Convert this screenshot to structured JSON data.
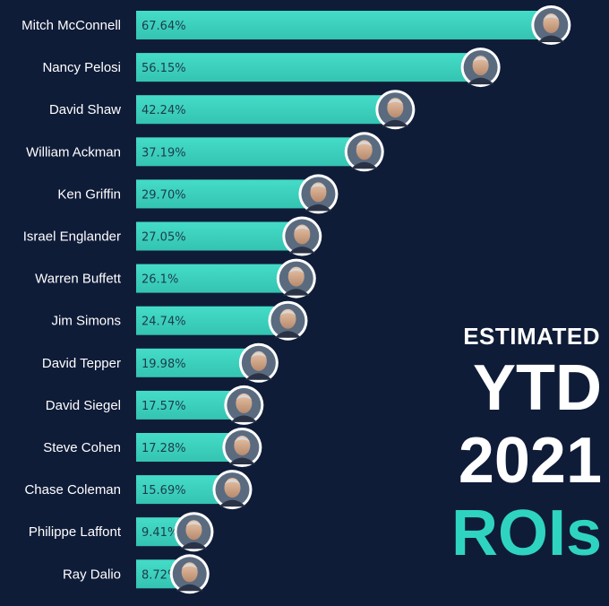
{
  "chart_data": {
    "type": "bar",
    "orientation": "horizontal",
    "categories": [
      "Mitch McConnell",
      "Nancy Pelosi",
      "David Shaw",
      "William Ackman",
      "Ken Griffin",
      "Israel Englander",
      "Warren Buffett",
      "Jim Simons",
      "David Tepper",
      "David Siegel",
      "Steve Cohen",
      "Chase Coleman",
      "Philippe Laffont",
      "Ray Dalio"
    ],
    "values": [
      67.64,
      56.15,
      42.24,
      37.19,
      29.7,
      27.05,
      26.1,
      24.74,
      19.98,
      17.57,
      17.28,
      15.69,
      9.41,
      8.72
    ],
    "value_labels": [
      "67.64%",
      "56.15%",
      "42.24%",
      "37.19%",
      "29.70%",
      "27.05%",
      "26.1%",
      "24.74%",
      "19.98%",
      "17.57%",
      "17.28%",
      "15.69%",
      "9.41%",
      "8.72%"
    ],
    "grid": false
  },
  "title": {
    "line1": "ESTIMATED",
    "line2": "YTD",
    "line3": "2021",
    "line4": "ROIs"
  },
  "colors": {
    "background": "#0f1c38",
    "bar": "#3fd6c2",
    "bar_dark": "#1f8a82",
    "title_accent": "#2fd4c0"
  },
  "icons": {
    "avatar": "person-portrait-icon"
  }
}
